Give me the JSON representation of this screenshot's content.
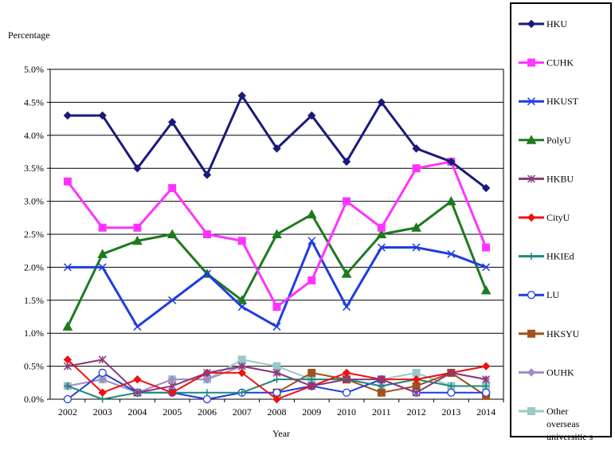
{
  "chart_data": {
    "type": "line",
    "title": "",
    "xlabel": "Year",
    "ylabel": "Percentage",
    "ylim": [
      0,
      5.0
    ],
    "y_ticks": [
      "0.0%",
      "0.5%",
      "1.0%",
      "1.5%",
      "2.0%",
      "2.5%",
      "3.0%",
      "3.5%",
      "4.0%",
      "4.5%",
      "5.0%"
    ],
    "grid": "horizontal",
    "legend_position": "right",
    "categories": [
      "2002",
      "2003",
      "2004",
      "2005",
      "2006",
      "2007",
      "2008",
      "2009",
      "2010",
      "2011",
      "2012",
      "2013",
      "2014"
    ],
    "series": [
      {
        "name": "HKU",
        "color": "#1a1a7a",
        "marker": "diamond",
        "values": [
          4.3,
          4.3,
          3.5,
          4.2,
          3.4,
          4.6,
          3.8,
          4.3,
          3.6,
          4.5,
          3.8,
          3.6,
          3.2
        ]
      },
      {
        "name": "CUHK",
        "color": "#ff33ff",
        "marker": "square",
        "values": [
          3.3,
          2.6,
          2.6,
          3.2,
          2.5,
          2.4,
          1.4,
          1.8,
          3.0,
          2.6,
          3.5,
          3.6,
          2.3
        ]
      },
      {
        "name": "HKUST",
        "color": "#1f3de0",
        "marker": "x",
        "values": [
          2.0,
          2.0,
          1.1,
          1.5,
          1.9,
          1.4,
          1.1,
          2.4,
          1.4,
          2.3,
          2.3,
          2.2,
          2.0
        ]
      },
      {
        "name": "PolyU",
        "color": "#1e7a1e",
        "marker": "triangle",
        "values": [
          1.1,
          2.2,
          2.4,
          2.5,
          1.9,
          1.5,
          2.5,
          2.8,
          1.9,
          2.5,
          2.6,
          3.0,
          1.65
        ]
      },
      {
        "name": "HKBU",
        "color": "#8b3a7a",
        "marker": "star",
        "values": [
          0.5,
          0.6,
          0.1,
          0.2,
          0.4,
          0.5,
          0.4,
          0.2,
          0.3,
          0.3,
          0.1,
          0.4,
          0.3
        ]
      },
      {
        "name": "CityU",
        "color": "#ee1111",
        "marker": "diamond",
        "values": [
          0.6,
          0.1,
          0.3,
          0.1,
          0.4,
          0.4,
          0.0,
          0.2,
          0.4,
          0.3,
          0.3,
          0.4,
          0.5
        ]
      },
      {
        "name": "HKIEd",
        "color": "#1b8a7a",
        "marker": "plus",
        "values": [
          0.2,
          0.0,
          0.1,
          0.1,
          0.1,
          0.1,
          0.3,
          0.3,
          0.3,
          0.2,
          0.3,
          0.2,
          0.2
        ]
      },
      {
        "name": "LU",
        "color": "#1f3de0",
        "marker": "circle",
        "values": [
          0.0,
          0.4,
          0.1,
          0.1,
          0.0,
          0.1,
          0.1,
          0.2,
          0.1,
          0.3,
          0.1,
          0.1,
          0.1
        ]
      },
      {
        "name": "HKSYU",
        "color": "#a0521a",
        "marker": "square",
        "values": [
          null,
          null,
          null,
          null,
          null,
          null,
          0.1,
          0.4,
          0.3,
          0.1,
          0.2,
          0.4,
          0.05
        ]
      },
      {
        "name": "OUHK",
        "color": "#a28cc8",
        "marker": "diamond",
        "values": [
          0.2,
          0.3,
          0.1,
          0.3,
          0.3,
          0.5,
          0.4,
          0.2,
          0.3,
          0.2,
          0.3,
          0.4,
          0.3
        ]
      },
      {
        "name": "Other overseas universities",
        "display_lines": [
          "Other",
          "overseas",
          "universitie s"
        ],
        "color": "#99c9c9",
        "marker": "square",
        "values": [
          0.2,
          0.3,
          0.1,
          0.3,
          0.3,
          0.6,
          0.5,
          0.3,
          0.3,
          0.3,
          0.4,
          0.2,
          0.2
        ]
      }
    ]
  }
}
